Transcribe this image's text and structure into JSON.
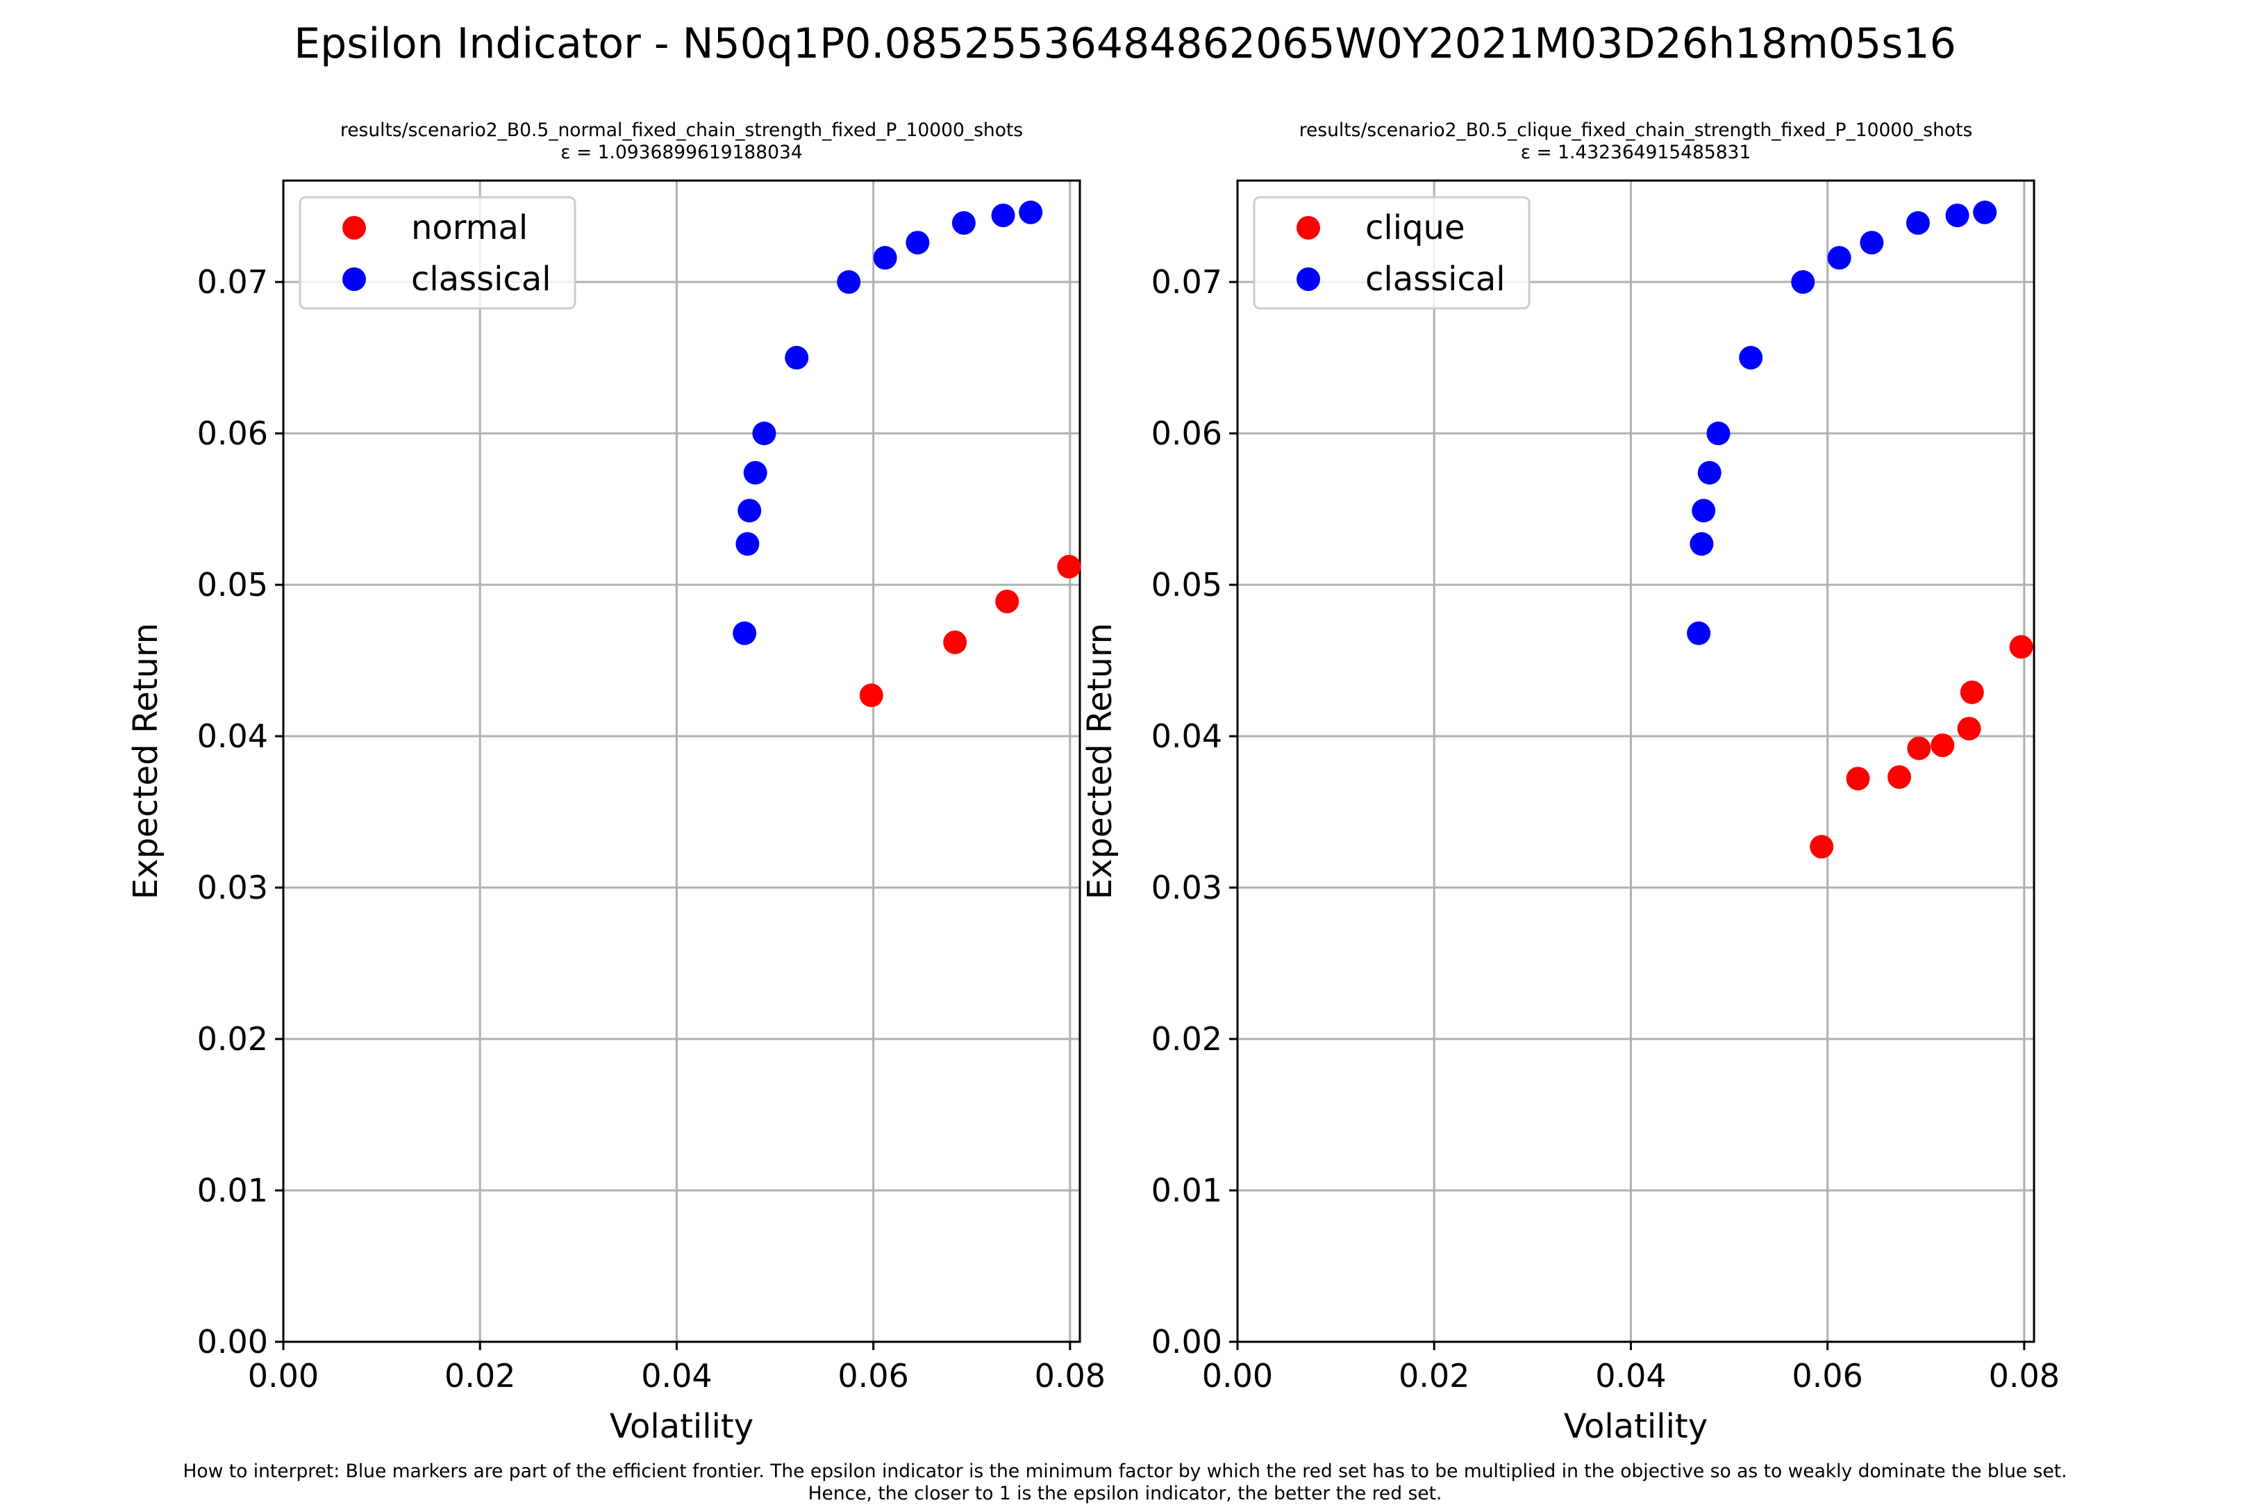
{
  "figure": {
    "suptitle": "Epsilon Indicator - N50q1P0.08525536484862065W0Y2021M03D26h18m05s16",
    "footnote_line1": "How to interpret: Blue markers are part of the efficient frontier. The epsilon indicator is the minimum factor by which the red set has to be multiplied in the objective so as to weakly dominate the blue set.",
    "footnote_line2": "Hence, the closer to 1 is the epsilon indicator, the better the red set."
  },
  "colors": {
    "red": "#ff0000",
    "blue": "#0000ff",
    "grid": "#b0b0b0"
  },
  "chart_data": [
    {
      "type": "scatter",
      "title_line1": "results/scenario2_B0.5_normal_fixed_chain_strength_fixed_P_10000_shots",
      "title_line2": "ε = 1.0936899619188034",
      "xlabel": "Volatility",
      "ylabel": "Expected Return",
      "xlim": [
        0,
        0.081
      ],
      "ylim": [
        0,
        0.0767
      ],
      "xticks": [
        "0.00",
        "0.02",
        "0.04",
        "0.06",
        "0.08"
      ],
      "yticks": [
        "0.00",
        "0.01",
        "0.02",
        "0.03",
        "0.04",
        "0.05",
        "0.06",
        "0.07"
      ],
      "grid": true,
      "legend_position": "upper-left",
      "series": [
        {
          "name": "normal",
          "color": "#ff0000",
          "points": [
            [
              0.0598,
              0.0427
            ],
            [
              0.0683,
              0.0462
            ],
            [
              0.0736,
              0.0489
            ],
            [
              0.0799,
              0.0512
            ]
          ]
        },
        {
          "name": "classical",
          "color": "#0000ff",
          "points": [
            [
              0.0469,
              0.0468
            ],
            [
              0.0472,
              0.0527
            ],
            [
              0.0474,
              0.0549
            ],
            [
              0.048,
              0.0574
            ],
            [
              0.0489,
              0.06
            ],
            [
              0.0522,
              0.065
            ],
            [
              0.0575,
              0.07
            ],
            [
              0.0612,
              0.0716
            ],
            [
              0.0645,
              0.0726
            ],
            [
              0.0692,
              0.0739
            ],
            [
              0.0732,
              0.0744
            ],
            [
              0.076,
              0.0746
            ]
          ]
        }
      ]
    },
    {
      "type": "scatter",
      "title_line1": "results/scenario2_B0.5_clique_fixed_chain_strength_fixed_P_10000_shots",
      "title_line2": "ε = 1.432364915485831",
      "xlabel": "Volatility",
      "ylabel": "Expected Return",
      "xlim": [
        0,
        0.081
      ],
      "ylim": [
        0,
        0.0767
      ],
      "xticks": [
        "0.00",
        "0.02",
        "0.04",
        "0.06",
        "0.08"
      ],
      "yticks": [
        "0.00",
        "0.01",
        "0.02",
        "0.03",
        "0.04",
        "0.05",
        "0.06",
        "0.07"
      ],
      "grid": true,
      "legend_position": "upper-left",
      "series": [
        {
          "name": "clique",
          "color": "#ff0000",
          "points": [
            [
              0.0594,
              0.0327
            ],
            [
              0.0631,
              0.0372
            ],
            [
              0.0673,
              0.0373
            ],
            [
              0.0693,
              0.0392
            ],
            [
              0.0717,
              0.0394
            ],
            [
              0.0744,
              0.0405
            ],
            [
              0.0747,
              0.0429
            ],
            [
              0.0797,
              0.0459
            ]
          ]
        },
        {
          "name": "classical",
          "color": "#0000ff",
          "points": [
            [
              0.0469,
              0.0468
            ],
            [
              0.0472,
              0.0527
            ],
            [
              0.0474,
              0.0549
            ],
            [
              0.048,
              0.0574
            ],
            [
              0.0489,
              0.06
            ],
            [
              0.0522,
              0.065
            ],
            [
              0.0575,
              0.07
            ],
            [
              0.0612,
              0.0716
            ],
            [
              0.0645,
              0.0726
            ],
            [
              0.0692,
              0.0739
            ],
            [
              0.0732,
              0.0744
            ],
            [
              0.076,
              0.0746
            ]
          ]
        }
      ]
    }
  ]
}
